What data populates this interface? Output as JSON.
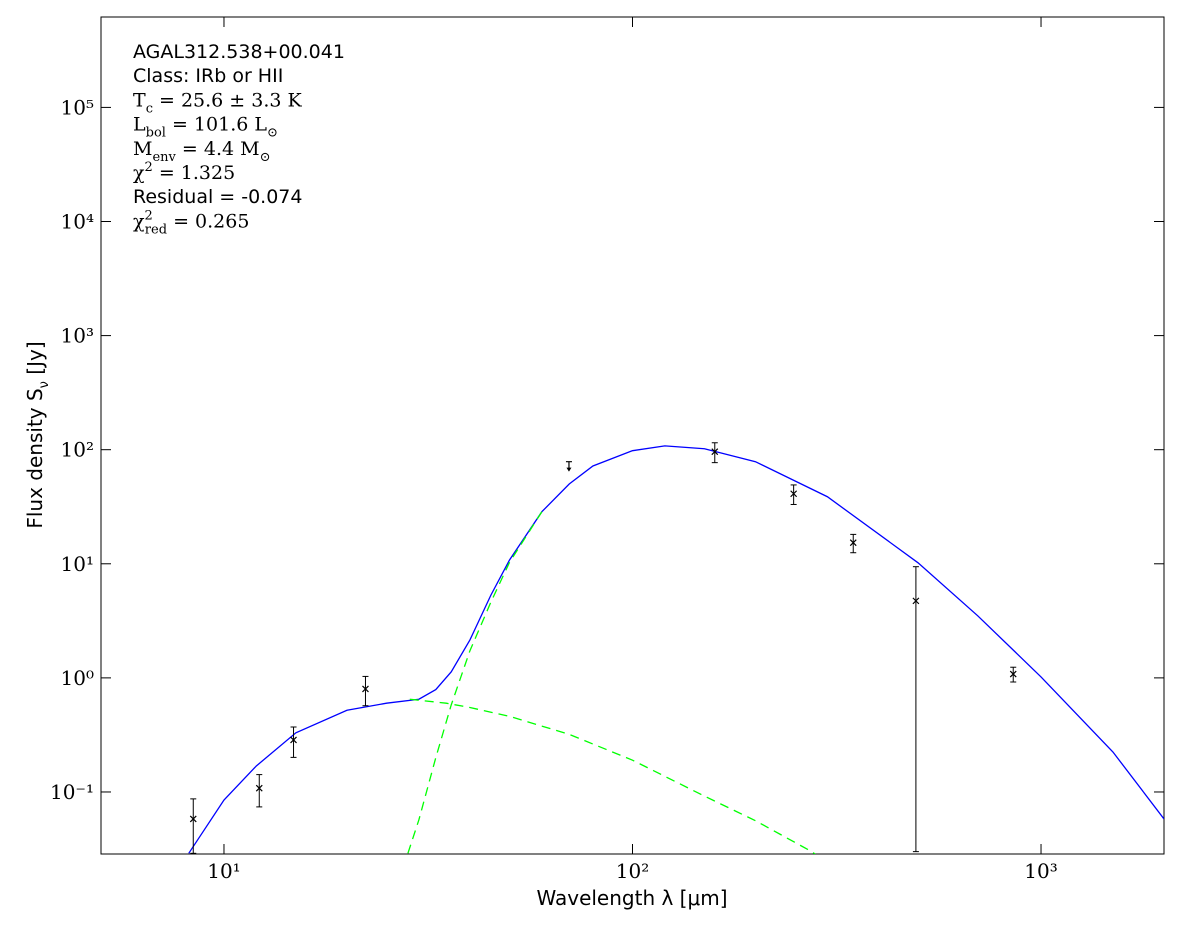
{
  "chart_data": {
    "type": "line",
    "xscale": "log",
    "yscale": "log",
    "x_label": "Wavelength λ [μm]",
    "y_label": [
      "Flux density S",
      {
        "sub": "ν"
      },
      " [Jy]"
    ],
    "annotations": [
      [
        "AGAL312.538+00.041"
      ],
      [
        "Class: IRb or HII"
      ],
      [
        "T",
        {
          "sub": "c"
        },
        " = 25.6 ± 3.3 K"
      ],
      [
        "L",
        {
          "sub": "bol"
        },
        " = 101.6 L",
        {
          "sub": "⊙"
        }
      ],
      [
        "M",
        {
          "sub": "env"
        },
        " = 4.4 M",
        {
          "sub": "⊙"
        }
      ],
      [
        "χ",
        {
          "sup": "2"
        },
        " = 1.325"
      ],
      [
        "Residual = -0.074"
      ],
      [
        "χ",
        {
          "sup": "2",
          "sub": "red"
        },
        " = 0.265"
      ]
    ],
    "xlim": [
      5,
      2000
    ],
    "ylim": [
      0.0286,
      620000
    ],
    "xticks": [
      {
        "value": 10,
        "label": "10¹"
      },
      {
        "value": 100,
        "label": "10²"
      },
      {
        "value": 1000,
        "label": "10³"
      }
    ],
    "yticks": [
      {
        "value": 0.1,
        "label": "10⁻¹"
      },
      {
        "value": 1,
        "label": "10⁰"
      },
      {
        "value": 10,
        "label": "10¹"
      },
      {
        "value": 100,
        "label": "10²"
      },
      {
        "value": 1000,
        "label": "10³"
      },
      {
        "value": 10000,
        "label": "10⁴"
      },
      {
        "value": 100000,
        "label": "10⁵"
      }
    ],
    "series": [
      {
        "color": "#0000ff",
        "style": "solid",
        "x": [
          8.2,
          10,
          12,
          15,
          20,
          25,
          30,
          33,
          36,
          40,
          45,
          50,
          60,
          70,
          80,
          100,
          120,
          150,
          200,
          300,
          500,
          700,
          1000,
          1500,
          2000
        ],
        "values": [
          0.029,
          0.085,
          0.169,
          0.33,
          0.52,
          0.6,
          0.65,
          0.79,
          1.13,
          2.15,
          5.3,
          10.8,
          28.6,
          50,
          72,
          98,
          108,
          102,
          78.5,
          38.7,
          10.2,
          3.5,
          1.02,
          0.224,
          0.058
        ]
      },
      {
        "color": "#00ff00",
        "style": "dashed",
        "x": [
          28.2,
          30,
          33,
          36,
          40,
          45,
          50,
          60
        ],
        "values": [
          0.029,
          0.057,
          0.2,
          0.58,
          1.73,
          4.6,
          10.3,
          28.6
        ]
      },
      {
        "color": "#00ff00",
        "style": "dashed",
        "x": [
          28.5,
          35,
          40,
          50,
          70,
          100,
          150,
          200,
          270,
          280
        ],
        "values": [
          0.65,
          0.6,
          0.55,
          0.46,
          0.32,
          0.19,
          0.092,
          0.056,
          0.031,
          0.0286
        ]
      }
    ],
    "points": {
      "color": "#000000",
      "x": [
        8.41,
        12.2,
        14.8,
        22.2,
        159,
        248,
        347,
        494,
        855
      ],
      "values": [
        0.058,
        0.108,
        0.286,
        0.8,
        96,
        41.1,
        15.3,
        4.73,
        1.08
      ],
      "errors": [
        0.029,
        0.034,
        0.085,
        0.23,
        19,
        8,
        2.8,
        4.7,
        0.16
      ]
    },
    "upper_limits": {
      "color": "#000000",
      "x": [
        69.9
      ],
      "values": [
        78.5
      ]
    }
  }
}
